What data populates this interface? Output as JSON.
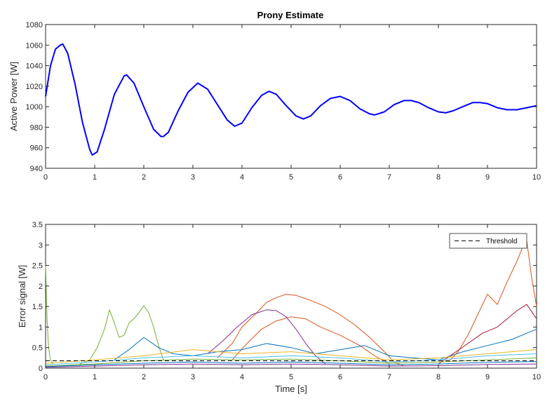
{
  "chart_data": [
    {
      "type": "line",
      "title": "Prony Estimate",
      "xlabel": "",
      "ylabel": "Active Power [W]",
      "xlim": [
        0,
        10
      ],
      "ylim": [
        940,
        1080
      ],
      "xticks": [
        0,
        1,
        2,
        3,
        4,
        5,
        6,
        7,
        8,
        9,
        10
      ],
      "yticks": [
        940,
        960,
        980,
        1000,
        1020,
        1040,
        1060,
        1080
      ],
      "grid": false,
      "series": [
        {
          "color": "#0000ff",
          "x": [
            0,
            0.1,
            0.2,
            0.3,
            0.35,
            0.45,
            0.6,
            0.75,
            0.9,
            0.95,
            1.05,
            1.2,
            1.4,
            1.6,
            1.65,
            1.8,
            2.0,
            2.2,
            2.35,
            2.4,
            2.5,
            2.7,
            2.9,
            3.1,
            3.3,
            3.5,
            3.7,
            3.85,
            4.0,
            4.2,
            4.4,
            4.55,
            4.7,
            4.9,
            5.1,
            5.25,
            5.4,
            5.6,
            5.8,
            6.0,
            6.2,
            6.4,
            6.6,
            6.7,
            6.9,
            7.1,
            7.3,
            7.45,
            7.6,
            7.8,
            8.0,
            8.15,
            8.3,
            8.5,
            8.7,
            8.85,
            9.0,
            9.2,
            9.4,
            9.6,
            9.8,
            10.0
          ],
          "y": [
            1010,
            1040,
            1056,
            1060,
            1061,
            1052,
            1022,
            985,
            958,
            953,
            956,
            978,
            1012,
            1030,
            1031,
            1023,
            1000,
            978,
            971,
            971,
            975,
            996,
            1014,
            1023,
            1017,
            1002,
            987,
            981,
            984,
            999,
            1011,
            1015,
            1012,
            1001,
            991,
            988,
            991,
            1001,
            1008,
            1010,
            1006,
            998,
            993,
            992,
            995,
            1002,
            1006,
            1006,
            1004,
            999,
            995,
            994,
            996,
            1000,
            1004,
            1004,
            1003,
            999,
            997,
            997,
            999,
            1001
          ]
        }
      ]
    },
    {
      "type": "line",
      "title": "",
      "xlabel": "Time [s]",
      "ylabel": "Error signal [W]",
      "xlim": [
        0,
        10
      ],
      "ylim": [
        0,
        3.5
      ],
      "xticks": [
        0,
        1,
        2,
        3,
        4,
        5,
        6,
        7,
        8,
        9,
        10
      ],
      "yticks": [
        0,
        0.5,
        1,
        1.5,
        2,
        2.5,
        3,
        3.5
      ],
      "grid": false,
      "legend": {
        "position": "top-right",
        "entries": [
          "Threshold"
        ]
      },
      "threshold": 0.18,
      "series": [
        {
          "color": "#d95319",
          "x": [
            3.5,
            3.8,
            4.0,
            4.3,
            4.5,
            4.7,
            4.9,
            5.1,
            5.4,
            5.7,
            6.0,
            6.3,
            6.6,
            6.9,
            7.1,
            7.3
          ],
          "y": [
            0.25,
            0.6,
            1.0,
            1.35,
            1.6,
            1.72,
            1.8,
            1.77,
            1.65,
            1.5,
            1.3,
            1.05,
            0.75,
            0.4,
            0.15,
            0.05
          ]
        },
        {
          "color": "#d95319",
          "x": [
            3.8,
            4.1,
            4.4,
            4.7,
            5.0,
            5.3,
            5.6,
            6.0,
            6.4,
            6.7,
            7.0
          ],
          "y": [
            0.2,
            0.6,
            0.95,
            1.15,
            1.25,
            1.2,
            1.0,
            0.8,
            0.55,
            0.3,
            0.1
          ]
        },
        {
          "color": "#7e2f8e",
          "x": [
            3.3,
            3.6,
            3.9,
            4.2,
            4.5,
            4.7,
            4.9,
            5.1,
            5.3,
            5.5,
            5.7
          ],
          "y": [
            0.35,
            0.65,
            1.0,
            1.3,
            1.42,
            1.4,
            1.25,
            0.95,
            0.6,
            0.3,
            0.1
          ]
        },
        {
          "color": "#77ac30",
          "x": [
            0.7,
            0.9,
            1.05,
            1.2,
            1.3,
            1.4,
            1.5,
            1.6,
            1.7,
            1.8,
            1.9,
            2.0,
            2.1,
            2.2,
            2.3,
            2.4
          ],
          "y": [
            0.1,
            0.2,
            0.5,
            0.95,
            1.42,
            1.1,
            0.75,
            0.8,
            1.1,
            1.2,
            1.35,
            1.52,
            1.35,
            1.0,
            0.55,
            0.2
          ]
        },
        {
          "color": "#0072bd",
          "x": [
            1.4,
            1.7,
            2.0,
            2.3,
            2.6,
            3.0,
            3.5,
            4.0,
            4.5,
            5.0,
            5.5,
            6.0,
            6.5,
            7.0,
            7.5,
            8.0,
            8.5,
            9.0,
            9.5,
            10.0
          ],
          "y": [
            0.2,
            0.45,
            0.75,
            0.5,
            0.35,
            0.3,
            0.4,
            0.45,
            0.6,
            0.5,
            0.35,
            0.45,
            0.55,
            0.3,
            0.25,
            0.2,
            0.4,
            0.55,
            0.7,
            0.95
          ]
        },
        {
          "color": "#d95319",
          "x": [
            8.2,
            8.4,
            8.6,
            8.8,
            9.0,
            9.2,
            9.4,
            9.6,
            9.7,
            9.8,
            9.9,
            10.0
          ],
          "y": [
            0.15,
            0.4,
            0.8,
            1.3,
            1.8,
            1.55,
            2.1,
            2.6,
            2.9,
            3.1,
            2.2,
            1.5
          ]
        },
        {
          "color": "#a2142f",
          "x": [
            8.0,
            8.3,
            8.6,
            8.9,
            9.2,
            9.4,
            9.6,
            9.8,
            10.0
          ],
          "y": [
            0.1,
            0.35,
            0.6,
            0.85,
            1.0,
            1.2,
            1.4,
            1.55,
            1.2
          ]
        },
        {
          "color": "#edb120",
          "x": [
            0,
            1,
            2,
            3,
            4,
            5,
            6,
            7,
            8,
            9,
            10
          ],
          "y": [
            0.12,
            0.2,
            0.3,
            0.45,
            0.35,
            0.4,
            0.3,
            0.2,
            0.25,
            0.35,
            0.45
          ]
        },
        {
          "color": "#4dbeee",
          "x": [
            0,
            1,
            2,
            3,
            4,
            5,
            6,
            7,
            8,
            9,
            10
          ],
          "y": [
            0.08,
            0.15,
            0.25,
            0.3,
            0.25,
            0.3,
            0.25,
            0.15,
            0.2,
            0.3,
            0.35
          ]
        },
        {
          "color": "#77ac30",
          "x": [
            0,
            1,
            2,
            3,
            4,
            5,
            6,
            7,
            8,
            9,
            10
          ],
          "y": [
            0.05,
            0.1,
            0.18,
            0.22,
            0.2,
            0.22,
            0.18,
            0.12,
            0.15,
            0.2,
            0.25
          ]
        },
        {
          "color": "#0072bd",
          "x": [
            0,
            1,
            2,
            3,
            4,
            5,
            6,
            7,
            8,
            9,
            10
          ],
          "y": [
            0.04,
            0.08,
            0.12,
            0.15,
            0.12,
            0.15,
            0.12,
            0.08,
            0.1,
            0.14,
            0.16
          ]
        },
        {
          "color": "#7e2f8e",
          "x": [
            0,
            1,
            2,
            3,
            4,
            5,
            6,
            7,
            8,
            9,
            10
          ],
          "y": [
            0.02,
            0.05,
            0.08,
            0.1,
            0.08,
            0.1,
            0.08,
            0.05,
            0.06,
            0.09,
            0.1
          ]
        },
        {
          "color": "#77ac30",
          "x": [
            0,
            0.03,
            0.06,
            0.1,
            0.15
          ],
          "y": [
            2.5,
            1.2,
            0.5,
            0.2,
            0.1
          ]
        }
      ]
    }
  ]
}
